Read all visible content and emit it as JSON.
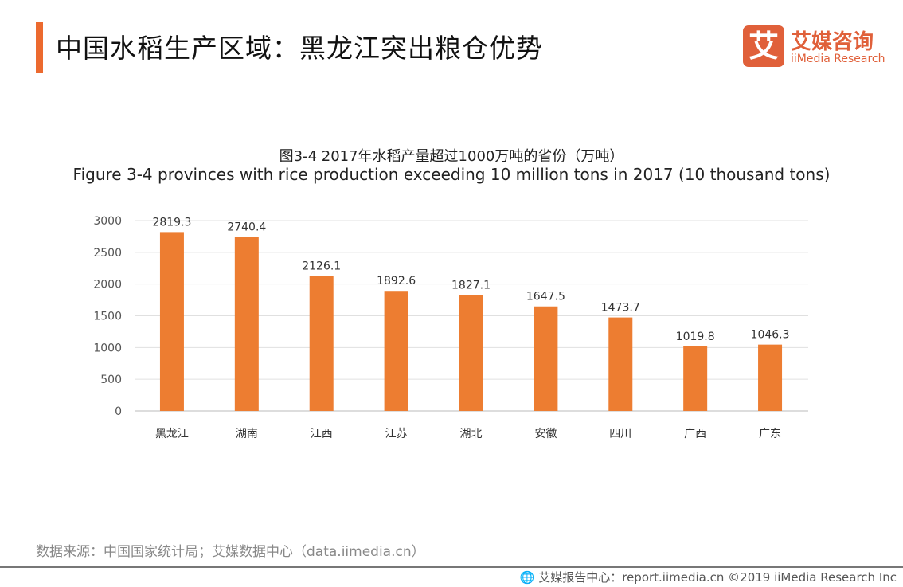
{
  "header": {
    "title": "中国水稻生产区域：黑龙江突出粮仓优势",
    "logo_cn": "艾媒咨询",
    "logo_en": "iiMedia Research",
    "logo_mark": "艾",
    "accent_color": "#ec6a2f"
  },
  "chart_data": {
    "type": "bar",
    "title": "图3-4 2017年水稻产量超过1000万吨的省份（万吨）",
    "subtitle": "Figure 3-4 provinces with rice production exceeding 10 million tons in 2017 (10 thousand tons)",
    "categories": [
      "黑龙江",
      "湖南",
      "江西",
      "江苏",
      "湖北",
      "安徽",
      "四川",
      "广西",
      "广东"
    ],
    "values": [
      2819.3,
      2740.4,
      2126.1,
      1892.6,
      1827.1,
      1647.5,
      1473.7,
      1019.8,
      1046.3
    ],
    "yticks": [
      0,
      500,
      1000,
      1500,
      2000,
      2500,
      3000
    ],
    "ylim": [
      0,
      3000
    ],
    "grid": true,
    "bar_color": "#ed7d31"
  },
  "source": "数据来源：中国国家统计局；艾媒数据中心（data.iimedia.cn）",
  "footer": "🌐 艾媒报告中心：report.iimedia.cn  ©2019  iiMedia Research  Inc"
}
